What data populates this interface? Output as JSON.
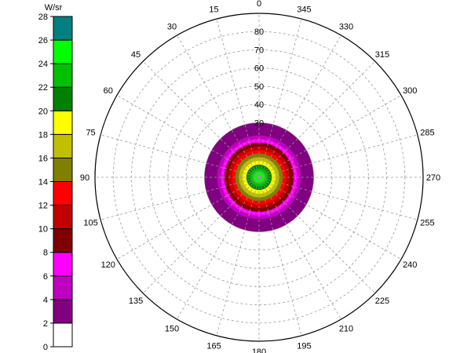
{
  "chart_data": {
    "type": "polar_heatmap",
    "unit_label": "W/sr",
    "angular_ticks": [
      "0",
      "15",
      "30",
      "45",
      "60",
      "75",
      "90",
      "105",
      "120",
      "135",
      "150",
      "165",
      "180",
      "195",
      "210",
      "225",
      "240",
      "255",
      "270",
      "285",
      "300",
      "315",
      "330",
      "345"
    ],
    "radial_ticks": [
      "30",
      "40",
      "50",
      "60",
      "70",
      "80"
    ],
    "radial_range": [
      0,
      90
    ],
    "grid": true,
    "colorbar": {
      "ticks": [
        "0",
        "2",
        "4",
        "6",
        "8",
        "10",
        "12",
        "14",
        "16",
        "18",
        "20",
        "22",
        "24",
        "26",
        "28"
      ],
      "range": [
        0,
        28
      ],
      "bins": [
        {
          "from": 0,
          "to": 2,
          "color": "#ffffff"
        },
        {
          "from": 2,
          "to": 4,
          "color": "#800080"
        },
        {
          "from": 4,
          "to": 6,
          "color": "#c000c0"
        },
        {
          "from": 6,
          "to": 8,
          "color": "#ff00ff"
        },
        {
          "from": 8,
          "to": 10,
          "color": "#800000"
        },
        {
          "from": 10,
          "to": 12,
          "color": "#c00000"
        },
        {
          "from": 12,
          "to": 14,
          "color": "#ff0000"
        },
        {
          "from": 14,
          "to": 16,
          "color": "#808000"
        },
        {
          "from": 16,
          "to": 18,
          "color": "#c0c000"
        },
        {
          "from": 18,
          "to": 20,
          "color": "#ffff00"
        },
        {
          "from": 20,
          "to": 22,
          "color": "#008000"
        },
        {
          "from": 22,
          "to": 24,
          "color": "#00c000"
        },
        {
          "from": 24,
          "to": 26,
          "color": "#00ff00"
        },
        {
          "from": 26,
          "to": 28,
          "color": "#008080"
        }
      ]
    },
    "intensity_profile": [
      {
        "angle": 0,
        "value": 27
      },
      {
        "angle": 3,
        "value": 25
      },
      {
        "angle": 5,
        "value": 23
      },
      {
        "angle": 7,
        "value": 21
      },
      {
        "angle": 9,
        "value": 19
      },
      {
        "angle": 11,
        "value": 17
      },
      {
        "angle": 13,
        "value": 15
      },
      {
        "angle": 15,
        "value": 13
      },
      {
        "angle": 17,
        "value": 11
      },
      {
        "angle": 19,
        "value": 9
      },
      {
        "angle": 21,
        "value": 7
      },
      {
        "angle": 23,
        "value": 5
      },
      {
        "angle": 30,
        "value": 3
      },
      {
        "angle": 32,
        "value": 1
      }
    ]
  }
}
